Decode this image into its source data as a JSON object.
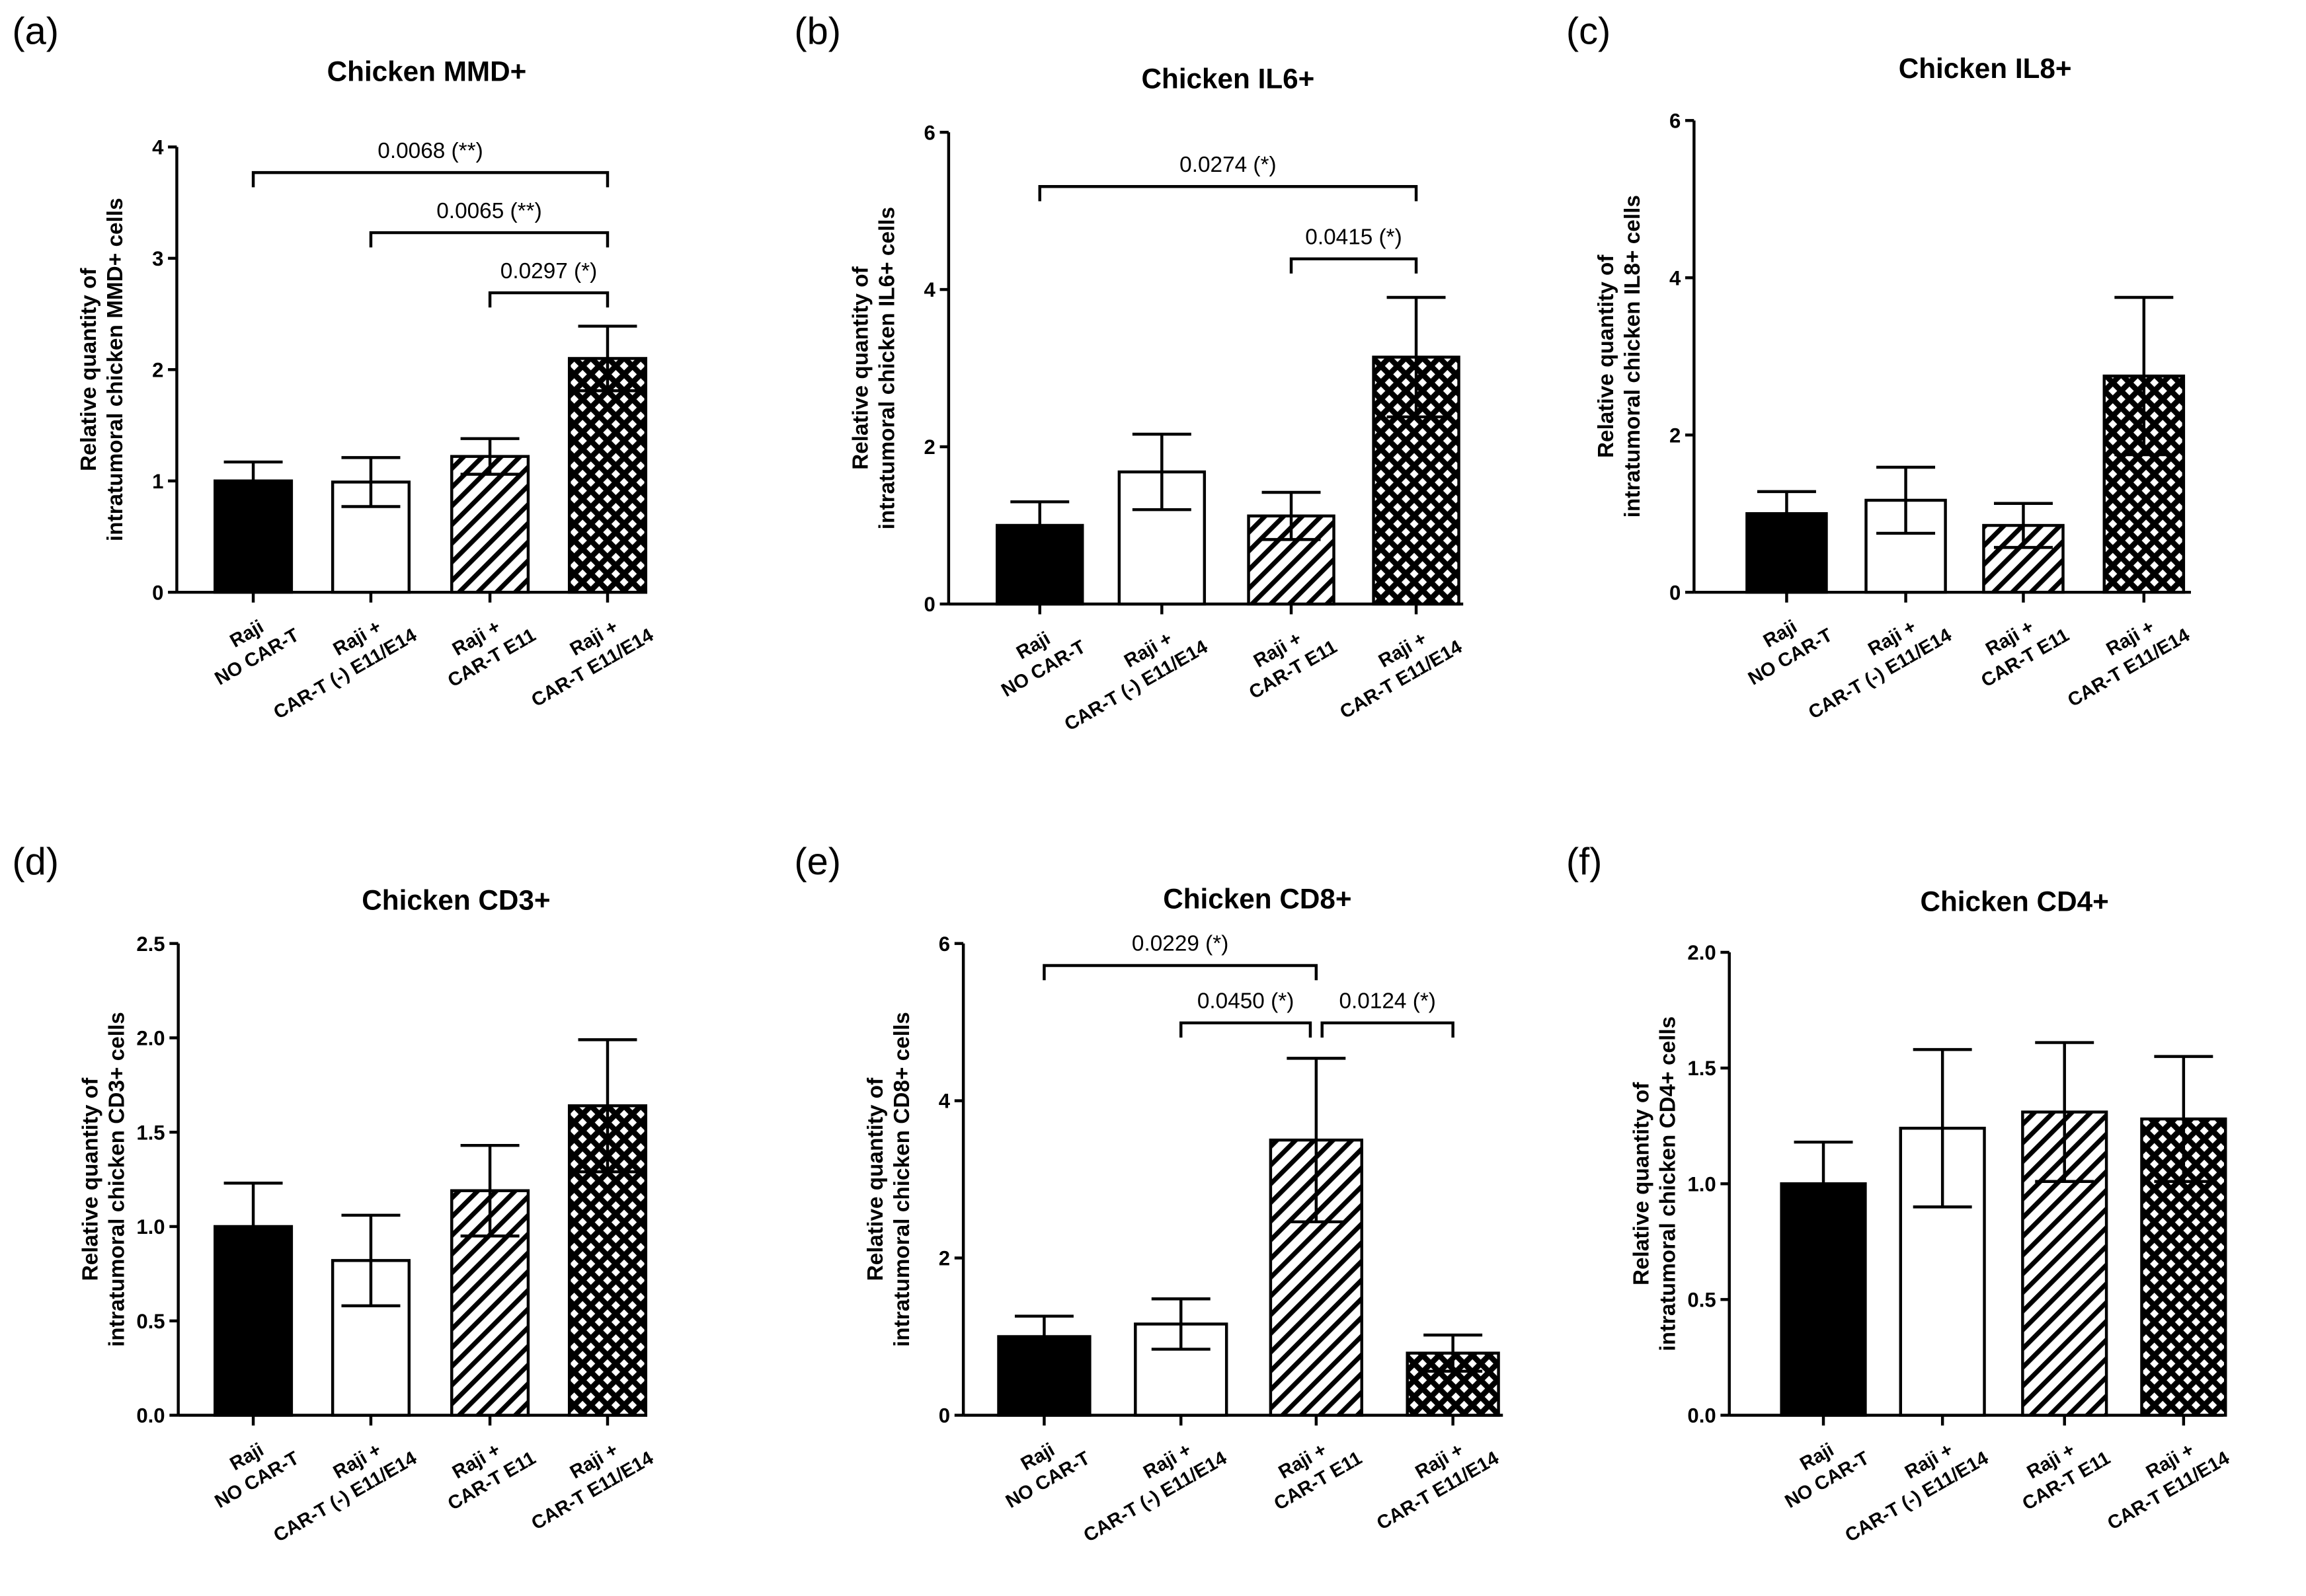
{
  "chart_data": [
    {
      "type": "bar",
      "panel": "(a)",
      "title": "Chicken MMD+",
      "ylabel": [
        "Relative quantity of",
        "intratumoral chicken MMD+ cells"
      ],
      "categories": [
        [
          "Raji",
          "NO CAR-T"
        ],
        [
          "Raji +",
          "CAR-T (-) E11/E14"
        ],
        [
          "Raji +",
          "CAR-T E11"
        ],
        [
          "Raji +",
          "CAR-T E11/E14"
        ]
      ],
      "values": [
        1.0,
        0.99,
        1.22,
        2.1
      ],
      "errors": [
        0.17,
        0.22,
        0.16,
        0.29
      ],
      "ylim": [
        0,
        4
      ],
      "yticks": [
        "0",
        "1",
        "2",
        "3",
        "4"
      ],
      "comparisons": [
        {
          "from": 0,
          "to": 3,
          "y": 3.77,
          "label": "0.0068 (**)"
        },
        {
          "from": 1,
          "to": 3,
          "y": 3.23,
          "label": "0.0065 (**)"
        },
        {
          "from": 2,
          "to": 3,
          "y": 2.69,
          "label": "0.0297 (*)"
        }
      ]
    },
    {
      "type": "bar",
      "panel": "(b)",
      "title": "Chicken IL6+",
      "ylabel": [
        "Relative quantity of",
        "intratumoral chicken IL6+ cells"
      ],
      "categories": [
        [
          "Raji",
          "NO CAR-T"
        ],
        [
          "Raji +",
          "CAR-T (-) E11/E14"
        ],
        [
          "Raji +",
          "CAR-T E11"
        ],
        [
          "Raji +",
          "CAR-T E11/E14"
        ]
      ],
      "values": [
        1.0,
        1.68,
        1.12,
        3.14
      ],
      "errors": [
        0.3,
        0.48,
        0.3,
        0.76
      ],
      "ylim": [
        0,
        6
      ],
      "yticks": [
        "0",
        "2",
        "4",
        "6"
      ],
      "comparisons": [
        {
          "from": 0,
          "to": 3,
          "y": 5.31,
          "label": "0.0274 (*)"
        },
        {
          "from": 2,
          "to": 3,
          "y": 4.39,
          "label": "0.0415 (*)"
        }
      ]
    },
    {
      "type": "bar",
      "panel": "(c)",
      "title": "Chicken IL8+",
      "ylabel": [
        "Relative quantity of",
        "intratumoral chicken IL8+ cells"
      ],
      "categories": [
        [
          "Raji",
          "NO CAR-T"
        ],
        [
          "Raji +",
          "CAR-T (-) E11/E14"
        ],
        [
          "Raji +",
          "CAR-T E11"
        ],
        [
          "Raji +",
          "CAR-T E11/E14"
        ]
      ],
      "values": [
        1.0,
        1.17,
        0.85,
        2.75
      ],
      "errors": [
        0.28,
        0.42,
        0.28,
        1.0
      ],
      "ylim": [
        0,
        6
      ],
      "yticks": [
        "0",
        "2",
        "4",
        "6"
      ],
      "comparisons": []
    },
    {
      "type": "bar",
      "panel": "(d)",
      "title": "Chicken CD3+",
      "ylabel": [
        "Relative quantity of",
        "intratumoral chicken CD3+ cells"
      ],
      "categories": [
        [
          "Raji",
          "NO CAR-T"
        ],
        [
          "Raji +",
          "CAR-T (-) E11/E14"
        ],
        [
          "Raji +",
          "CAR-T E11"
        ],
        [
          "Raji +",
          "CAR-T E11/E14"
        ]
      ],
      "values": [
        1.0,
        0.82,
        1.19,
        1.64
      ],
      "errors": [
        0.23,
        0.24,
        0.24,
        0.35
      ],
      "ylim": [
        0,
        2.5
      ],
      "yticks": [
        "0.0",
        "0.5",
        "1.0",
        "1.5",
        "2.0",
        "2.5"
      ],
      "comparisons": []
    },
    {
      "type": "bar",
      "panel": "(e)",
      "title": "Chicken CD8+",
      "ylabel": [
        "Relative quantity of",
        "intratumoral chicken CD8+ cells"
      ],
      "categories": [
        [
          "Raji",
          "NO CAR-T"
        ],
        [
          "Raji +",
          "CAR-T (-) E11/E14"
        ],
        [
          "Raji +",
          "CAR-T E11"
        ],
        [
          "Raji +",
          "CAR-T E11/E14"
        ]
      ],
      "values": [
        1.0,
        1.16,
        3.5,
        0.79
      ],
      "errors": [
        0.26,
        0.32,
        1.04,
        0.23
      ],
      "ylim": [
        0,
        6
      ],
      "yticks": [
        "0",
        "2",
        "4",
        "6"
      ],
      "comparisons": [
        {
          "from": 0,
          "to": 2,
          "y": 5.72,
          "label": "0.0229 (*)"
        },
        {
          "from": 1,
          "to": 2,
          "y": 4.99,
          "label": "0.0450 (*)"
        },
        {
          "from": 2,
          "to": 3,
          "y": 4.99,
          "label": "0.0124 (*)"
        }
      ]
    },
    {
      "type": "bar",
      "panel": "(f)",
      "title": "Chicken CD4+",
      "ylabel": [
        "Relative quantity of",
        "intratumoral chicken CD4+ cells"
      ],
      "categories": [
        [
          "Raji",
          "NO CAR-T"
        ],
        [
          "Raji +",
          "CAR-T (-) E11/E14"
        ],
        [
          "Raji +",
          "CAR-T E11"
        ],
        [
          "Raji +",
          "CAR-T E11/E14"
        ]
      ],
      "values": [
        1.0,
        1.24,
        1.31,
        1.28
      ],
      "errors": [
        0.18,
        0.34,
        0.3,
        0.27
      ],
      "ylim": [
        0,
        2.0
      ],
      "yticks": [
        "0.0",
        "0.5",
        "1.0",
        "1.5",
        "2.0"
      ],
      "comparisons": []
    }
  ],
  "fills": [
    "solid-black",
    "white",
    "diagonal-hatch",
    "cross-hatch"
  ],
  "colors": {
    "ink": "#000000",
    "background": "#ffffff"
  }
}
